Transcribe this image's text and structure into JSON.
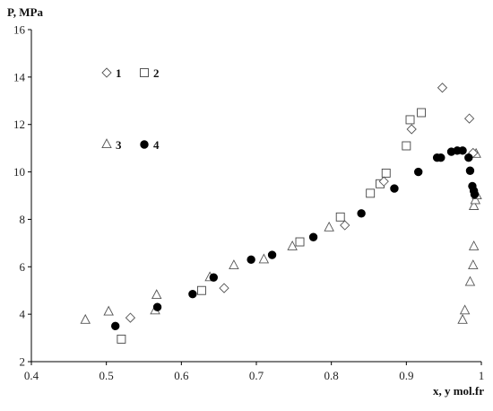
{
  "chart_data": {
    "type": "scatter",
    "ylabel": "P, MPa",
    "xlabel": "x, y mol.fr",
    "xlim": [
      0.4,
      1.0
    ],
    "ylim": [
      2,
      16
    ],
    "xticks": [
      "0.4",
      "0.5",
      "0.6",
      "0.7",
      "0.8",
      "0.9",
      "1"
    ],
    "xtick_values": [
      0.4,
      0.5,
      0.6,
      0.7,
      0.8,
      0.9,
      1.0
    ],
    "yticks": [
      "2",
      "4",
      "6",
      "8",
      "10",
      "12",
      "14",
      "16"
    ],
    "ytick_values": [
      2,
      4,
      6,
      8,
      10,
      12,
      14,
      16
    ],
    "grid": false,
    "legend_placement": "top-left",
    "series": [
      {
        "name": "1",
        "marker": "diamond-open",
        "points": [
          [
            0.532,
            3.85
          ],
          [
            0.657,
            5.1
          ],
          [
            0.818,
            7.75
          ],
          [
            0.87,
            9.6
          ],
          [
            0.907,
            11.8
          ],
          [
            0.948,
            13.55
          ],
          [
            0.984,
            12.25
          ],
          [
            0.989,
            10.8
          ]
        ]
      },
      {
        "name": "2",
        "marker": "square-open",
        "points": [
          [
            0.52,
            2.95
          ],
          [
            0.627,
            5.0
          ],
          [
            0.758,
            7.05
          ],
          [
            0.812,
            8.1
          ],
          [
            0.852,
            9.1
          ],
          [
            0.865,
            9.5
          ],
          [
            0.873,
            9.95
          ],
          [
            0.9,
            11.1
          ],
          [
            0.905,
            12.2
          ],
          [
            0.92,
            12.5
          ]
        ]
      },
      {
        "name": "3",
        "marker": "triangle-open",
        "points": [
          [
            0.472,
            3.75
          ],
          [
            0.503,
            4.1
          ],
          [
            0.565,
            4.15
          ],
          [
            0.567,
            4.8
          ],
          [
            0.638,
            5.55
          ],
          [
            0.67,
            6.05
          ],
          [
            0.71,
            6.3
          ],
          [
            0.748,
            6.85
          ],
          [
            0.797,
            7.65
          ],
          [
            0.975,
            3.75
          ],
          [
            0.978,
            4.15
          ],
          [
            0.985,
            5.35
          ],
          [
            0.989,
            6.05
          ],
          [
            0.99,
            6.85
          ],
          [
            0.99,
            8.55
          ],
          [
            0.992,
            8.8
          ],
          [
            0.994,
            9.0
          ],
          [
            0.993,
            10.75
          ]
        ]
      },
      {
        "name": "4",
        "marker": "circle-filled",
        "points": [
          [
            0.512,
            3.5
          ],
          [
            0.568,
            4.3
          ],
          [
            0.615,
            4.85
          ],
          [
            0.643,
            5.55
          ],
          [
            0.693,
            6.3
          ],
          [
            0.721,
            6.5
          ],
          [
            0.776,
            7.25
          ],
          [
            0.84,
            8.25
          ],
          [
            0.884,
            9.3
          ],
          [
            0.916,
            10.0
          ],
          [
            0.941,
            10.6
          ],
          [
            0.946,
            10.6
          ],
          [
            0.96,
            10.85
          ],
          [
            0.968,
            10.9
          ],
          [
            0.975,
            10.9
          ],
          [
            0.983,
            10.6
          ],
          [
            0.985,
            10.05
          ],
          [
            0.988,
            9.4
          ],
          [
            0.99,
            9.2
          ],
          [
            0.991,
            9.05
          ]
        ]
      }
    ]
  }
}
